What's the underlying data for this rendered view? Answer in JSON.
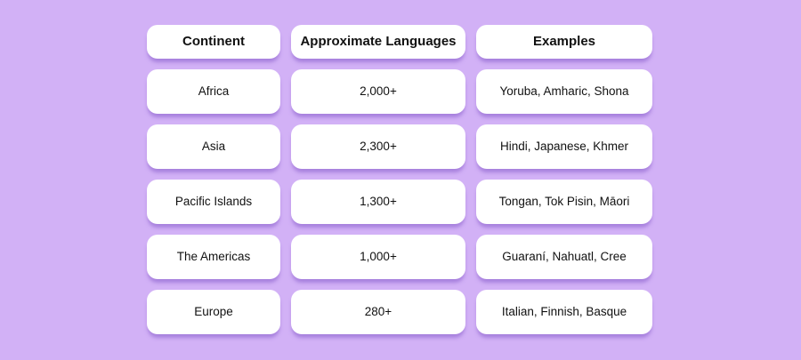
{
  "style": {
    "background_color": "#d2b1f6",
    "card_color": "#ffffff",
    "shadow_color": "#8457c9",
    "text_color": "#111111"
  },
  "chart_data": {
    "type": "table",
    "title": "",
    "columns": [
      "Continent",
      "Approximate Languages",
      "Examples"
    ],
    "rows": [
      [
        "Africa",
        "2,000+",
        "Yoruba, Amharic, Shona"
      ],
      [
        "Asia",
        "2,300+",
        "Hindi, Japanese, Khmer"
      ],
      [
        "Pacific Islands",
        "1,300+",
        "Tongan, Tok Pisin, Māori"
      ],
      [
        "The Americas",
        "1,000+",
        "Guaraní, Nahuatl, Cree"
      ],
      [
        "Europe",
        "280+",
        "Italian, Finnish, Basque"
      ]
    ]
  }
}
